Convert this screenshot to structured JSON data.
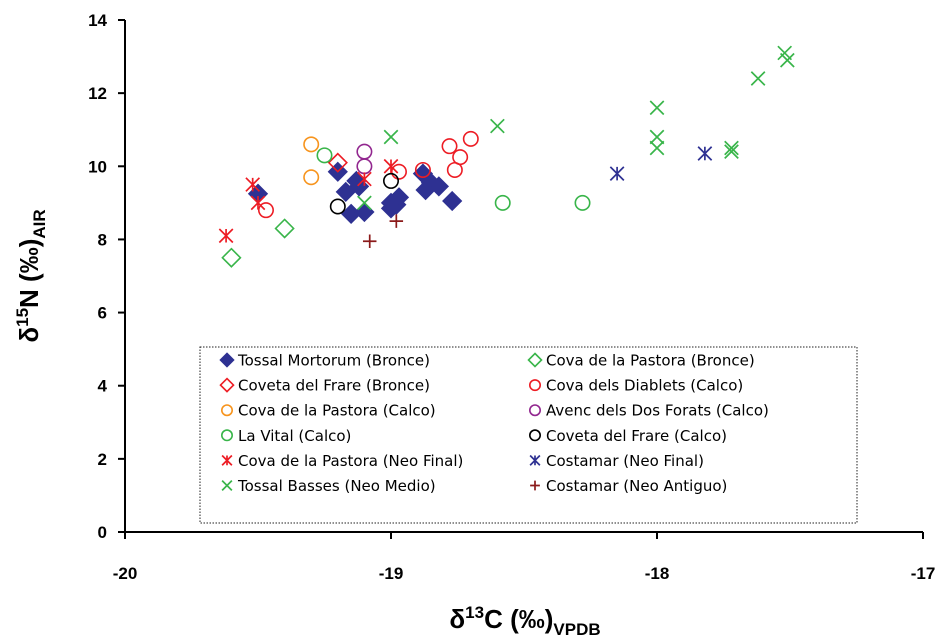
{
  "chart_data": {
    "type": "scatter",
    "xlabel": {
      "main": "δ",
      "sup": "13",
      "rest": "C (‰)",
      "sub": "VPDB"
    },
    "ylabel": {
      "main": "δ",
      "sup": "15",
      "rest": "N (‰)",
      "sub": "AIR"
    },
    "xlim": [
      -20,
      -17
    ],
    "ylim": [
      0,
      14
    ],
    "x_ticks": [
      -20,
      -19,
      -18,
      -17
    ],
    "y_ticks": [
      0,
      2,
      4,
      6,
      8,
      10,
      12,
      14
    ],
    "grid": false,
    "legend_position": "bottom-center, inside plot, dotted border, two columns",
    "series": [
      {
        "name": "Tossal Mortorum (Bronce)",
        "marker": "diamond-filled",
        "color": "#2e3192",
        "points": [
          [
            -19.5,
            9.25
          ],
          [
            -19.2,
            9.85
          ],
          [
            -19.17,
            9.3
          ],
          [
            -19.15,
            8.7
          ],
          [
            -19.13,
            9.6
          ],
          [
            -19.12,
            9.45
          ],
          [
            -19.1,
            8.75
          ],
          [
            -19.0,
            8.85
          ],
          [
            -19.0,
            9.0
          ],
          [
            -18.98,
            8.95
          ],
          [
            -18.97,
            9.15
          ],
          [
            -18.88,
            9.8
          ],
          [
            -18.87,
            9.35
          ],
          [
            -18.85,
            9.55
          ],
          [
            -18.82,
            9.45
          ],
          [
            -18.77,
            9.05
          ]
        ]
      },
      {
        "name": "Cova de la Pastora (Bronce)",
        "marker": "diamond-open",
        "color": "#39b54a",
        "points": [
          [
            -19.6,
            7.5
          ],
          [
            -19.4,
            8.3
          ]
        ]
      },
      {
        "name": "Coveta del Frare (Bronce)",
        "marker": "diamond-open",
        "color": "#ed1c24",
        "points": [
          [
            -19.2,
            10.1
          ]
        ]
      },
      {
        "name": "Cova dels Diablets (Calco)",
        "marker": "circle-open",
        "color": "#ed1c24",
        "points": [
          [
            -19.47,
            8.8
          ],
          [
            -18.97,
            9.85
          ],
          [
            -18.88,
            9.9
          ],
          [
            -18.78,
            10.55
          ],
          [
            -18.76,
            9.9
          ],
          [
            -18.74,
            10.25
          ],
          [
            -18.7,
            10.75
          ]
        ]
      },
      {
        "name": "Cova de la Pastora (Calco)",
        "marker": "circle-open",
        "color": "#f7941d",
        "points": [
          [
            -19.3,
            10.6
          ],
          [
            -19.3,
            9.7
          ]
        ]
      },
      {
        "name": "Avenc dels Dos Forats (Calco)",
        "marker": "circle-open",
        "color": "#92278f",
        "points": [
          [
            -19.1,
            10.0
          ],
          [
            -19.1,
            10.4
          ]
        ]
      },
      {
        "name": "La Vital (Calco)",
        "marker": "circle-open",
        "color": "#39b54a",
        "points": [
          [
            -19.25,
            10.3
          ],
          [
            -18.58,
            9.0
          ],
          [
            -18.28,
            9.0
          ]
        ]
      },
      {
        "name": "Coveta del Frare (Calco)",
        "marker": "circle-open",
        "color": "#000000",
        "points": [
          [
            -19.2,
            8.9
          ],
          [
            -19.0,
            9.6
          ]
        ]
      },
      {
        "name": "Cova de la Pastora (Neo Final)",
        "marker": "asterisk",
        "color": "#ed1c24",
        "points": [
          [
            -19.62,
            8.1
          ],
          [
            -19.52,
            9.5
          ],
          [
            -19.5,
            9.0
          ],
          [
            -19.1,
            9.65
          ],
          [
            -19.0,
            10.0
          ]
        ]
      },
      {
        "name": "Costamar (Neo Final)",
        "marker": "asterisk",
        "color": "#2e3192",
        "points": [
          [
            -18.15,
            9.8
          ],
          [
            -17.82,
            10.35
          ]
        ]
      },
      {
        "name": "Tossal Basses (Neo Medio)",
        "marker": "x",
        "color": "#39b54a",
        "points": [
          [
            -19.1,
            9.0
          ],
          [
            -19.0,
            10.8
          ],
          [
            -18.6,
            11.1
          ],
          [
            -18.0,
            11.6
          ],
          [
            -18.0,
            10.8
          ],
          [
            -18.0,
            10.5
          ],
          [
            -17.72,
            10.5
          ],
          [
            -17.72,
            10.4
          ],
          [
            -17.62,
            12.4
          ],
          [
            -17.52,
            13.1
          ],
          [
            -17.51,
            12.9
          ]
        ]
      },
      {
        "name": "Costamar (Neo Antiguo)",
        "marker": "plus",
        "color": "#8b1a1a",
        "points": [
          [
            -19.08,
            7.95
          ],
          [
            -18.98,
            8.5
          ]
        ]
      }
    ]
  }
}
